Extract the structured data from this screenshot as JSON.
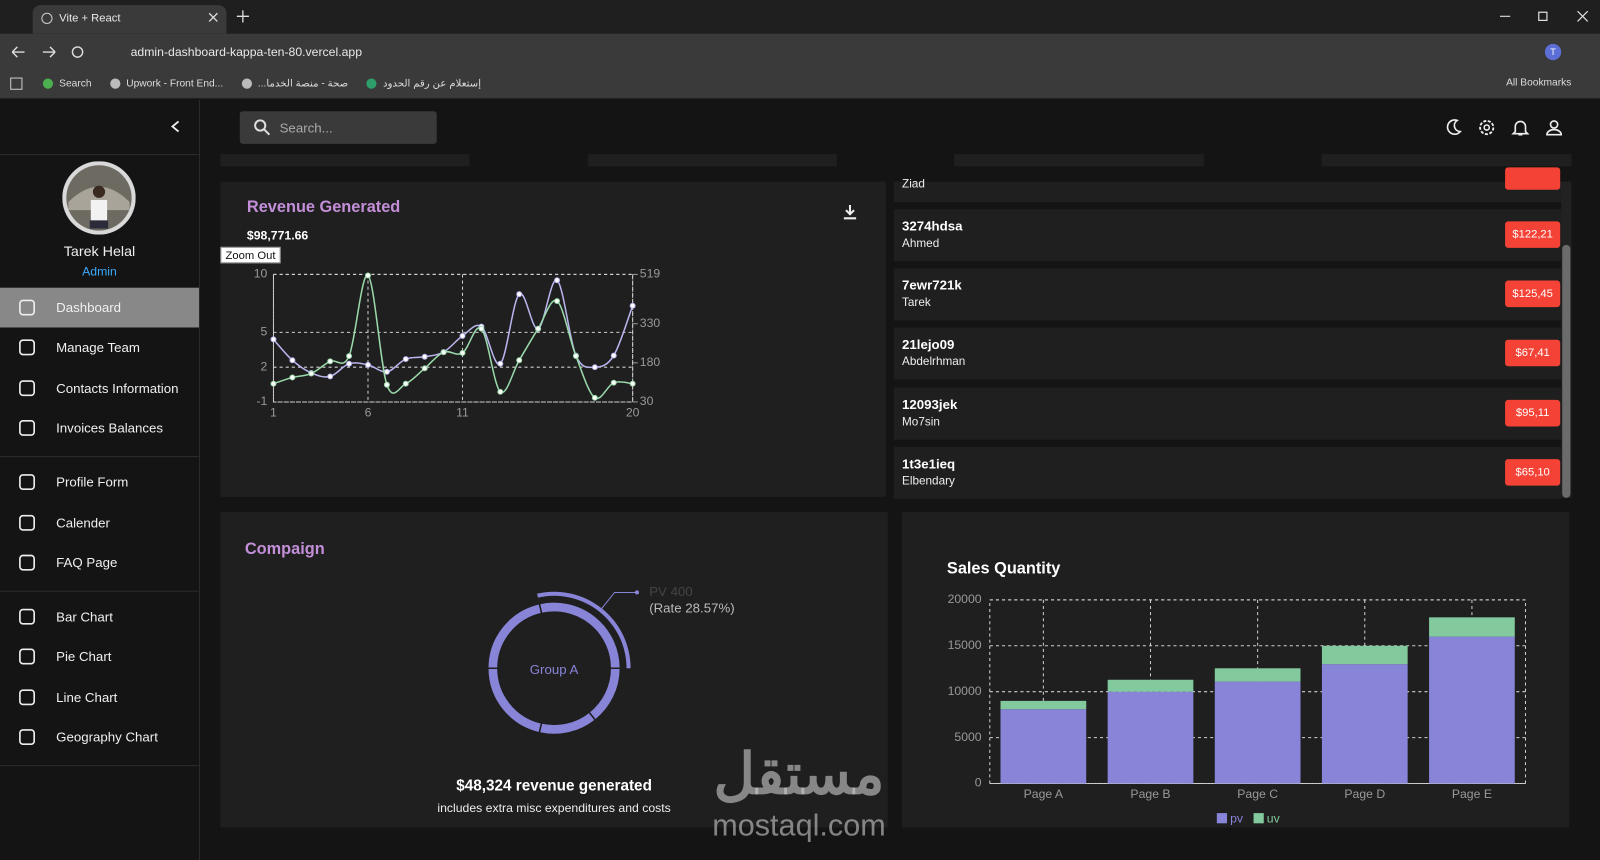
{
  "browser": {
    "tab_title": "Vite + React",
    "url": "admin-dashboard-kappa-ten-80.vercel.app",
    "bookmarks": [
      "Search",
      "Upwork - Front End...",
      "صحة - منصة الخدما...",
      "إستعلام عن رقم الحدود"
    ],
    "all_bookmarks": "All Bookmarks",
    "profile_initial": "T"
  },
  "topbar": {
    "search_placeholder": "Search..."
  },
  "sidebar": {
    "user": {
      "name": "Tarek Helal",
      "role": "Admin"
    },
    "groups": [
      [
        {
          "label": "Dashboard",
          "active": true
        },
        {
          "label": "Manage Team"
        },
        {
          "label": "Contacts Information"
        },
        {
          "label": "Invoices Balances"
        }
      ],
      [
        {
          "label": "Profile Form"
        },
        {
          "label": "Calender"
        },
        {
          "label": "FAQ Page"
        }
      ],
      [
        {
          "label": "Bar Chart"
        },
        {
          "label": "Pie Chart"
        },
        {
          "label": "Line Chart"
        },
        {
          "label": "Geography Chart"
        }
      ]
    ]
  },
  "revenue": {
    "title": "Revenue Generated",
    "total": "$98,771.66",
    "zoom_button": "Zoom Out",
    "chart": {
      "type": "line",
      "x": [
        1,
        2,
        3,
        4,
        5,
        6,
        7,
        8,
        9,
        10,
        11,
        12,
        13,
        14,
        15,
        16,
        17,
        18,
        19,
        20
      ],
      "xlim": [
        1,
        20
      ],
      "xticks": [
        1,
        6,
        11,
        20
      ],
      "ylim": [
        -1,
        10
      ],
      "yticks": [
        -1,
        2,
        5,
        10
      ],
      "y2lim": [
        30,
        519
      ],
      "y2ticks": [
        30,
        180,
        330,
        519
      ],
      "grid": true,
      "series": [
        {
          "color": "#b9b5ef",
          "values": [
            4.4,
            2.6,
            1.5,
            1.2,
            2.3,
            2.2,
            1.6,
            2.7,
            2.9,
            3.3,
            4.7,
            5.5,
            2.3,
            8.3,
            5.3,
            9.5,
            3.0,
            2.0,
            3.0,
            7.3
          ]
        },
        {
          "color": "#9ad9aa",
          "axis": "y2",
          "values": [
            100,
            124,
            139,
            186,
            206,
            515,
            96,
            100,
            159,
            221,
            218,
            311,
            69,
            190,
            311,
            417,
            206,
            46,
            104,
            100
          ]
        }
      ]
    }
  },
  "transactions": {
    "items": [
      {
        "user": "Ziad"
      },
      {
        "tx_id": "3274hdsa",
        "user": "Ahmed",
        "cost": "$122,21"
      },
      {
        "tx_id": "7ewr721k",
        "user": "Tarek",
        "cost": "$125,45"
      },
      {
        "tx_id": "21lejo09",
        "user": "Abdelrhman",
        "cost": "$67,41"
      },
      {
        "tx_id": "12093jek",
        "user": "Mo7sin",
        "cost": "$95,11"
      },
      {
        "tx_id": "1t3e1ieq",
        "user": "Elbendary",
        "cost": "$65,10"
      }
    ]
  },
  "campaign": {
    "title": "Compaign",
    "chart": {
      "type": "pie",
      "values": [
        400,
        300,
        300,
        200,
        200
      ],
      "color": "#8884d8",
      "active_index": 0,
      "center_label": "Group A",
      "value_label": "PV 400",
      "rate_label": "(Rate 28.57%)"
    },
    "revenue": "$48,324 revenue generated",
    "note": "includes extra misc expenditures and costs"
  },
  "sales": {
    "title": "Sales Quantity",
    "chart": {
      "type": "bar",
      "stacked": true,
      "categories": [
        "Page A",
        "Page B",
        "Page C",
        "Page D",
        "Page E"
      ],
      "series": [
        {
          "name": "pv",
          "color": "#8884d8",
          "values": [
            8100,
            10000,
            11100,
            13000,
            16000
          ]
        },
        {
          "name": "uv",
          "color": "#82ca9d",
          "values": [
            900,
            1300,
            1450,
            2000,
            2100
          ]
        }
      ],
      "ylim": [
        0,
        20000
      ],
      "yticks": [
        0,
        5000,
        10000,
        15000,
        20000
      ],
      "grid": true,
      "legend": "bottom"
    }
  },
  "watermark": {
    "arabic": "مستقل",
    "latin": "mostaql.com"
  }
}
